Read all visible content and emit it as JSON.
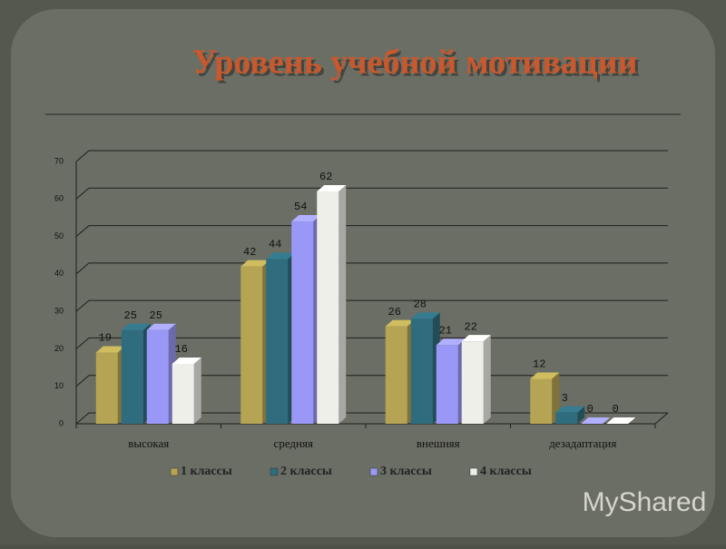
{
  "chart_data": {
    "type": "bar",
    "title": "Уровень учебной мотивации",
    "categories": [
      "высокая",
      "средняя",
      "внешняя",
      "дезадаптация"
    ],
    "series": [
      {
        "name": "1 классы",
        "color": "#b5a453",
        "values": [
          19,
          42,
          26,
          12
        ]
      },
      {
        "name": "2 классы",
        "color": "#2f6c7e",
        "values": [
          25,
          44,
          28,
          3
        ]
      },
      {
        "name": "3 классы",
        "color": "#9a98f6",
        "values": [
          25,
          54,
          21,
          0
        ]
      },
      {
        "name": "4 классы",
        "color": "#efefea",
        "values": [
          16,
          62,
          22,
          0
        ]
      }
    ],
    "ylim": [
      0,
      70
    ],
    "yticks": [
      0,
      10,
      20,
      30,
      40,
      50,
      60,
      70
    ],
    "grid": true,
    "legend": "bottom",
    "watermark": "MyShared"
  }
}
